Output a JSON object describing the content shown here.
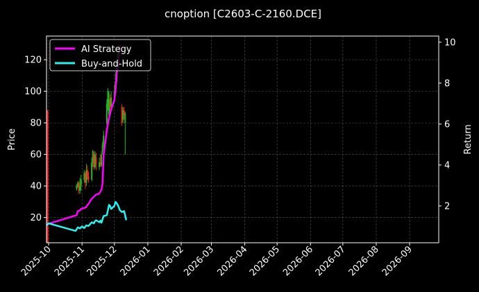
{
  "chart_data": {
    "type": "line",
    "title": "cnoption [C2603-C-2160.DCE]",
    "xlabel": "",
    "ylabel": "Price",
    "y2label": "Return",
    "grid": true,
    "legend_position": "top-left",
    "xlim": [
      "2025-09-29",
      "2026-09-28"
    ],
    "ylim": [
      4,
      135
    ],
    "y2lim": [
      0.2,
      10.3
    ],
    "x_ticks": [
      "2025-10-01",
      "2025-11-01",
      "2025-12-01",
      "2026-01-01",
      "2026-02-01",
      "2026-03-01",
      "2026-04-01",
      "2026-05-01",
      "2026-06-01",
      "2026-07-01",
      "2026-08-01",
      "2026-09-01"
    ],
    "x_tick_labels": [
      "2025-10",
      "2025-11",
      "2025-12",
      "2026-01",
      "2026-02",
      "2026-03",
      "2026-04",
      "2026-05",
      "2026-06",
      "2026-07",
      "2026-08",
      "2026-09"
    ],
    "y_ticks": [
      20,
      40,
      60,
      80,
      100,
      120
    ],
    "y2_ticks": [
      2,
      4,
      6,
      8,
      10
    ],
    "candles": [
      {
        "x": "2025-09-30",
        "open": 88,
        "close": 4,
        "high": 88,
        "low": 4
      },
      {
        "x": "2025-10-27",
        "open": 38,
        "close": 40,
        "high": 41,
        "low": 37
      },
      {
        "x": "2025-10-28",
        "open": 40,
        "close": 42,
        "high": 43,
        "low": 39
      },
      {
        "x": "2025-10-29",
        "open": 42,
        "close": 37,
        "high": 43,
        "low": 35
      },
      {
        "x": "2025-10-30",
        "open": 37,
        "close": 40,
        "high": 45,
        "low": 35
      },
      {
        "x": "2025-10-31",
        "open": 40,
        "close": 44,
        "high": 47,
        "low": 37
      },
      {
        "x": "2025-11-03",
        "open": 44,
        "close": 48,
        "high": 50,
        "low": 42
      },
      {
        "x": "2025-11-04",
        "open": 48,
        "close": 42,
        "high": 49,
        "low": 38
      },
      {
        "x": "2025-11-05",
        "open": 42,
        "close": 50,
        "high": 54,
        "low": 40
      },
      {
        "x": "2025-11-06",
        "open": 50,
        "close": 46,
        "high": 53,
        "low": 44
      },
      {
        "x": "2025-11-07",
        "open": 46,
        "close": 44,
        "high": 49,
        "low": 42
      },
      {
        "x": "2025-11-10",
        "open": 44,
        "close": 55,
        "high": 58,
        "low": 43
      },
      {
        "x": "2025-11-11",
        "open": 55,
        "close": 62,
        "high": 63,
        "low": 52
      },
      {
        "x": "2025-11-12",
        "open": 60,
        "close": 52,
        "high": 62,
        "low": 50
      },
      {
        "x": "2025-11-13",
        "open": 52,
        "close": 60,
        "high": 62,
        "low": 51
      },
      {
        "x": "2025-11-14",
        "open": 58,
        "close": 54,
        "high": 61,
        "low": 50
      },
      {
        "x": "2025-11-17",
        "open": 52,
        "close": 55,
        "high": 58,
        "low": 50
      },
      {
        "x": "2025-11-18",
        "open": 55,
        "close": 53,
        "high": 60,
        "low": 52
      },
      {
        "x": "2025-11-19",
        "open": 53,
        "close": 60,
        "high": 62,
        "low": 52
      },
      {
        "x": "2025-11-20",
        "open": 62,
        "close": 66,
        "high": 68,
        "low": 60
      },
      {
        "x": "2025-11-21",
        "open": 66,
        "close": 72,
        "high": 75,
        "low": 64
      },
      {
        "x": "2025-11-24",
        "open": 80,
        "close": 92,
        "high": 95,
        "low": 78
      },
      {
        "x": "2025-11-25",
        "open": 92,
        "close": 100,
        "high": 102,
        "low": 88
      },
      {
        "x": "2025-11-26",
        "open": 85,
        "close": 95,
        "high": 100,
        "low": 82
      },
      {
        "x": "2025-11-27",
        "open": 95,
        "close": 90,
        "high": 98,
        "low": 86
      },
      {
        "x": "2025-11-28",
        "open": 90,
        "close": 96,
        "high": 100,
        "low": 88
      },
      {
        "x": "2025-12-01",
        "open": 96,
        "close": 100,
        "high": 104,
        "low": 93
      },
      {
        "x": "2025-12-02",
        "open": 100,
        "close": 106,
        "high": 112,
        "low": 98
      },
      {
        "x": "2025-12-03",
        "open": 106,
        "close": 116,
        "high": 118,
        "low": 104
      },
      {
        "x": "2025-12-04",
        "open": 116,
        "close": 124,
        "high": 126,
        "low": 114
      },
      {
        "x": "2025-12-05",
        "open": 124,
        "close": 128,
        "high": 130,
        "low": 122
      },
      {
        "x": "2025-12-08",
        "open": 90,
        "close": 80,
        "high": 92,
        "low": 78
      },
      {
        "x": "2025-12-09",
        "open": 82,
        "close": 88,
        "high": 90,
        "low": 80
      },
      {
        "x": "2025-12-10",
        "open": 88,
        "close": 85,
        "high": 90,
        "low": 82
      },
      {
        "x": "2025-12-11",
        "open": 80,
        "close": 86,
        "high": 87,
        "low": 60
      }
    ],
    "series": [
      {
        "name": "AI Strategy",
        "color": "#ff00ff",
        "axis": "right",
        "points": [
          [
            "2025-09-29",
            1.1
          ],
          [
            "2025-10-27",
            1.55
          ],
          [
            "2025-10-28",
            1.75
          ],
          [
            "2025-10-30",
            1.78
          ],
          [
            "2025-10-31",
            1.85
          ],
          [
            "2025-11-03",
            1.9
          ],
          [
            "2025-11-05",
            1.95
          ],
          [
            "2025-11-06",
            2.05
          ],
          [
            "2025-11-07",
            2.1
          ],
          [
            "2025-11-10",
            2.35
          ],
          [
            "2025-11-12",
            2.45
          ],
          [
            "2025-11-14",
            2.55
          ],
          [
            "2025-11-17",
            2.6
          ],
          [
            "2025-11-19",
            2.8
          ],
          [
            "2025-11-20",
            3.1
          ],
          [
            "2025-11-21",
            4.5
          ],
          [
            "2025-11-24",
            5.7
          ],
          [
            "2025-11-26",
            6.3
          ],
          [
            "2025-11-28",
            6.7
          ],
          [
            "2025-12-01",
            7.2
          ],
          [
            "2025-12-02",
            7.6
          ],
          [
            "2025-12-03",
            8.4
          ],
          [
            "2025-12-05",
            9.1
          ],
          [
            "2025-12-06",
            9.85
          ]
        ]
      },
      {
        "name": "Buy-and-Hold",
        "color": "#2bf2f2",
        "axis": "right",
        "points": [
          [
            "2025-09-29",
            1.05
          ],
          [
            "2025-10-01",
            1.15
          ],
          [
            "2025-10-26",
            0.78
          ],
          [
            "2025-10-28",
            0.95
          ],
          [
            "2025-10-30",
            0.9
          ],
          [
            "2025-11-01",
            1.0
          ],
          [
            "2025-11-03",
            0.92
          ],
          [
            "2025-11-05",
            1.05
          ],
          [
            "2025-11-07",
            1.02
          ],
          [
            "2025-11-10",
            1.2
          ],
          [
            "2025-11-12",
            1.15
          ],
          [
            "2025-11-13",
            1.25
          ],
          [
            "2025-11-14",
            1.3
          ],
          [
            "2025-11-17",
            1.2
          ],
          [
            "2025-11-18",
            1.28
          ],
          [
            "2025-11-19",
            1.18
          ],
          [
            "2025-11-20",
            1.35
          ],
          [
            "2025-11-21",
            1.5
          ],
          [
            "2025-11-24",
            1.55
          ],
          [
            "2025-11-25",
            1.8
          ],
          [
            "2025-11-26",
            2.05
          ],
          [
            "2025-11-27",
            2.0
          ],
          [
            "2025-11-28",
            1.85
          ],
          [
            "2025-12-01",
            2.0
          ],
          [
            "2025-12-02",
            2.2
          ],
          [
            "2025-12-03",
            2.15
          ],
          [
            "2025-12-05",
            1.95
          ],
          [
            "2025-12-06",
            1.8
          ],
          [
            "2025-12-08",
            1.7
          ],
          [
            "2025-12-10",
            1.75
          ],
          [
            "2025-12-12",
            1.3
          ]
        ]
      }
    ]
  }
}
